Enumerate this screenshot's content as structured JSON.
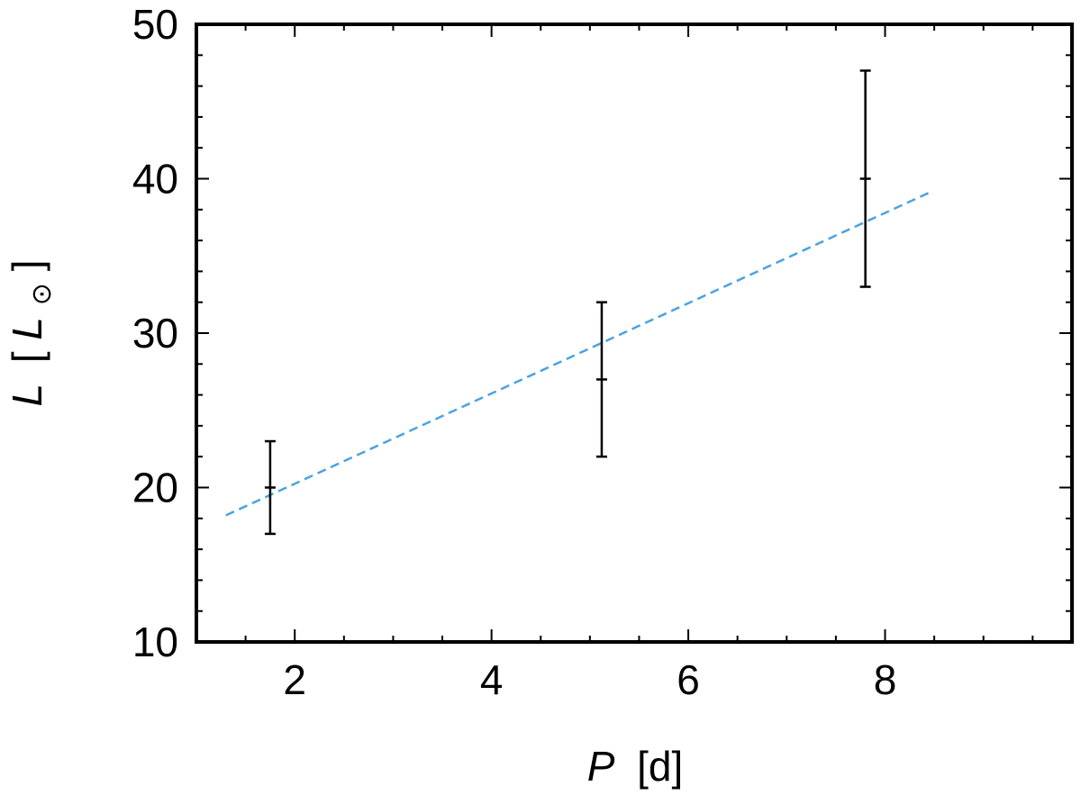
{
  "chart_data": {
    "type": "scatter",
    "xlabel": {
      "symbol": "P",
      "unit": "[d]"
    },
    "ylabel": {
      "symbol": "L",
      "unit_open": "[",
      "unit_symbol": "L",
      "unit_subscript": "⊙",
      "unit_close": "]"
    },
    "xlim": [
      1,
      9.9
    ],
    "ylim": [
      10,
      50
    ],
    "x_ticks": [
      2,
      4,
      6,
      8
    ],
    "y_ticks": [
      10,
      20,
      30,
      40,
      50
    ],
    "x_tick_labels": [
      "2",
      "4",
      "6",
      "8"
    ],
    "y_tick_labels": [
      "10",
      "20",
      "30",
      "40",
      "50"
    ],
    "grid": false,
    "series": [
      {
        "kind": "errorbar",
        "color": "#000000",
        "points": [
          {
            "x": 1.75,
            "y": 20,
            "y_low": 17,
            "y_high": 23
          },
          {
            "x": 5.12,
            "y": 27,
            "y_low": 22,
            "y_high": 32
          },
          {
            "x": 7.8,
            "y": 40,
            "y_low": 33,
            "y_high": 47
          }
        ]
      },
      {
        "kind": "fit-line",
        "style": "dashed",
        "color": "#4aa3df",
        "x": [
          1.3,
          8.45
        ],
        "y": [
          18.2,
          39.1
        ]
      }
    ]
  }
}
